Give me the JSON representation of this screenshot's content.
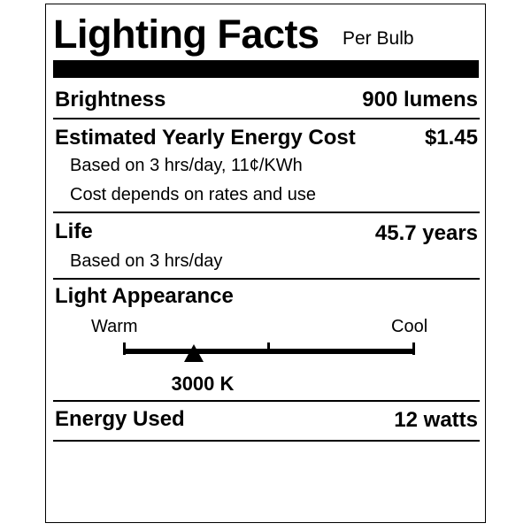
{
  "header": {
    "title": "Lighting Facts",
    "subtitle": "Per Bulb"
  },
  "brightness": {
    "label": "Brightness",
    "value": "900 lumens"
  },
  "energy_cost": {
    "label": "Estimated Yearly Energy Cost",
    "value": "$1.45",
    "notes": [
      "Based on 3 hrs/day, 11¢/KWh",
      "Cost depends on rates and use"
    ]
  },
  "life": {
    "label": "Life",
    "value": "45.7 years",
    "note": "Based on 3 hrs/day"
  },
  "light_appearance": {
    "label": "Light Appearance",
    "warm_label": "Warm",
    "cool_label": "Cool",
    "value": "3000 K",
    "marker_fraction": 0.24
  },
  "energy_used": {
    "label": "Energy Used",
    "value": "12 watts"
  }
}
